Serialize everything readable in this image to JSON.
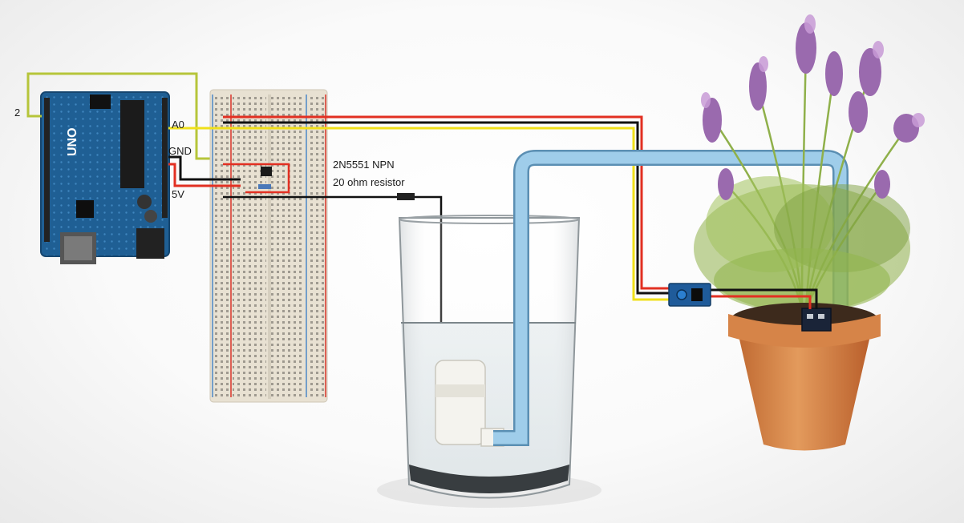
{
  "labels": {
    "pin2": "2",
    "a0": "A0",
    "gnd": "GND",
    "v5": "5V",
    "transistor": "2N5551 NPN",
    "resistor": "20 ohm resistor"
  },
  "board": {
    "model_text": "UNO"
  },
  "colors": {
    "board_blue": "#1f5f94",
    "breadboard": "#e8e1d2",
    "wire_red": "#e23022",
    "wire_black": "#111111",
    "wire_yellow": "#f0e01a",
    "wire_green": "#b6c53a",
    "tube_blue": "#9fcdea",
    "pot_terracotta": "#d6874b",
    "lavender": "#9a6aae",
    "foliage": "#8fb04a"
  }
}
